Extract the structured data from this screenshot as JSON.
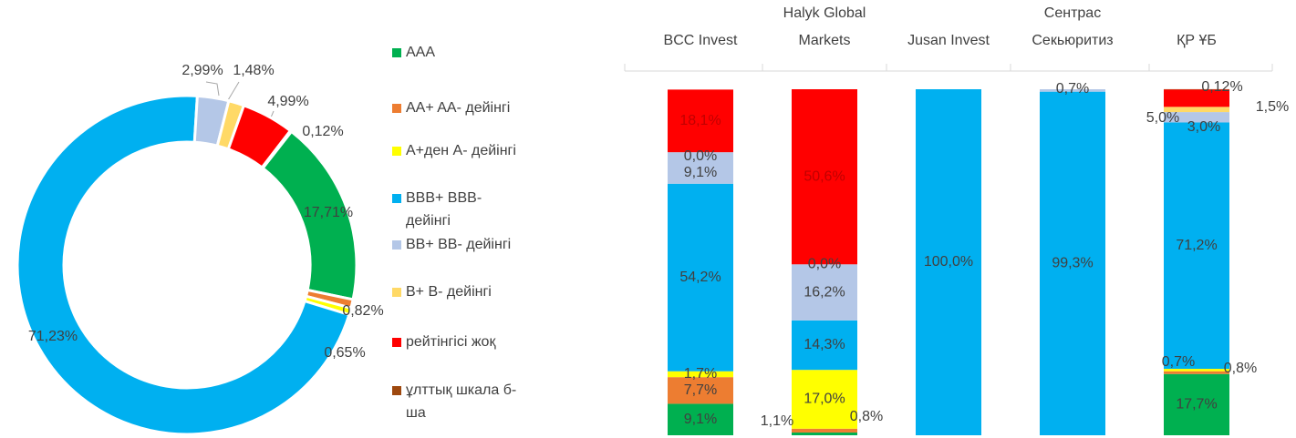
{
  "chart_data": [
    {
      "type": "donut",
      "categories": [
        "AAA",
        "AA+ AA- дейінгі",
        "A+ден A- дейінгі",
        "BBB+ BBB- дейінгі",
        "BB+ BB- дейінгі",
        "B+ B- дейінгі",
        "рейтінгісі жоқ",
        "ұлттық шкала б-ша"
      ],
      "values": [
        17.71,
        0.82,
        0.65,
        71.23,
        2.99,
        1.48,
        4.99,
        0.12
      ],
      "value_labels": [
        "17,71%",
        "0,82%",
        "0,65%",
        "71,23%",
        "2,99%",
        "1,48%",
        "4,99%",
        "0,12%"
      ],
      "colors": [
        "#00b050",
        "#ed7d31",
        "#ffff00",
        "#00b0f0",
        "#b4c7e7",
        "#ffd966",
        "#ff0000",
        "#9e480e"
      ],
      "legend": "right"
    },
    {
      "type": "stacked_bar",
      "categories": [
        "BCC Invest",
        "Halyk Global Markets",
        "Jusan Invest",
        "Сентрас Секьюритиз",
        "ҚР ҰБ"
      ],
      "ylim": [
        0,
        100
      ],
      "series": [
        {
          "color": "#00b050",
          "values": [
            9.1,
            0.8,
            null,
            null,
            17.7
          ],
          "value_labels": [
            "9,1%",
            "0,8%",
            null,
            null,
            "17,7%"
          ]
        },
        {
          "color": "#ed7d31",
          "values": [
            7.7,
            1.1,
            null,
            null,
            0.8
          ],
          "value_labels": [
            "7,7%",
            "1,1%",
            null,
            null,
            "0,8%"
          ]
        },
        {
          "color": "#ffff00",
          "values": [
            1.7,
            17,
            null,
            null,
            0.7
          ],
          "value_labels": [
            "1,7%",
            "17,0%",
            null,
            null,
            "0,7%"
          ]
        },
        {
          "color": "#00b0f0",
          "values": [
            54.2,
            14.3,
            100,
            99.3,
            71.2
          ],
          "value_labels": [
            "54,2%",
            "14,3%",
            "100,0%",
            "99,3%",
            "71,2%"
          ]
        },
        {
          "color": "#b4c7e7",
          "values": [
            9.1,
            16.2,
            null,
            0.7,
            3
          ],
          "value_labels": [
            "9,1%",
            "16,2%",
            null,
            "0,7%",
            "3,0%"
          ]
        },
        {
          "color": "#ffd966",
          "values": [
            0,
            0,
            null,
            null,
            1.5
          ],
          "value_labels": [
            "0,0%",
            "0,0%",
            null,
            null,
            "1,5%"
          ]
        },
        {
          "color": "#ff0000",
          "values": [
            18.1,
            50.6,
            null,
            null,
            5
          ],
          "value_labels": [
            "18,1%",
            "50,6%",
            null,
            null,
            "5,0%"
          ]
        },
        {
          "color": "#9e480e",
          "values": [
            null,
            null,
            null,
            null,
            0.12
          ],
          "value_labels": [
            null,
            null,
            null,
            null,
            "0,12%"
          ]
        }
      ]
    }
  ]
}
